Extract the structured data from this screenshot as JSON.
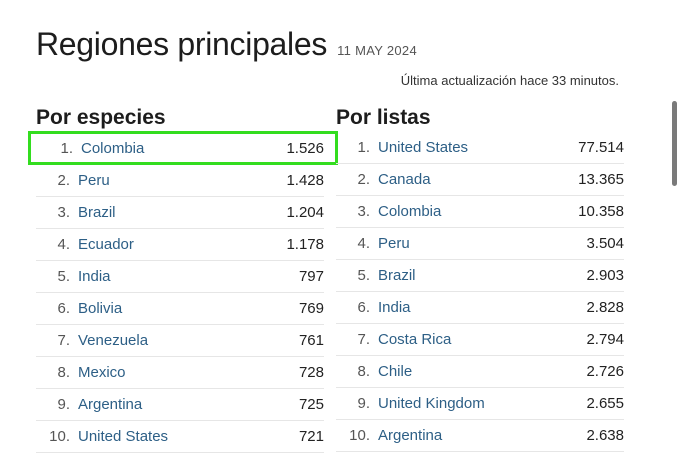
{
  "header": {
    "title": "Regiones principales",
    "date": "11 MAY 2024",
    "updated": "Última actualización hace 33 minutos."
  },
  "species": {
    "title": "Por especies",
    "rows": [
      {
        "rank": "1.",
        "name": "Colombia",
        "value": "1.526"
      },
      {
        "rank": "2.",
        "name": "Peru",
        "value": "1.428"
      },
      {
        "rank": "3.",
        "name": "Brazil",
        "value": "1.204"
      },
      {
        "rank": "4.",
        "name": "Ecuador",
        "value": "1.178"
      },
      {
        "rank": "5.",
        "name": "India",
        "value": "797"
      },
      {
        "rank": "6.",
        "name": "Bolivia",
        "value": "769"
      },
      {
        "rank": "7.",
        "name": "Venezuela",
        "value": "761"
      },
      {
        "rank": "8.",
        "name": "Mexico",
        "value": "728"
      },
      {
        "rank": "9.",
        "name": "Argentina",
        "value": "725"
      },
      {
        "rank": "10.",
        "name": "United States",
        "value": "721"
      }
    ]
  },
  "lists": {
    "title": "Por listas",
    "rows": [
      {
        "rank": "1.",
        "name": "United States",
        "value": "77.514"
      },
      {
        "rank": "2.",
        "name": "Canada",
        "value": "13.365"
      },
      {
        "rank": "3.",
        "name": "Colombia",
        "value": "10.358"
      },
      {
        "rank": "4.",
        "name": "Peru",
        "value": "3.504"
      },
      {
        "rank": "5.",
        "name": "Brazil",
        "value": "2.903"
      },
      {
        "rank": "6.",
        "name": "India",
        "value": "2.828"
      },
      {
        "rank": "7.",
        "name": "Costa Rica",
        "value": "2.794"
      },
      {
        "rank": "8.",
        "name": "Chile",
        "value": "2.726"
      },
      {
        "rank": "9.",
        "name": "United Kingdom",
        "value": "2.655"
      },
      {
        "rank": "10.",
        "name": "Argentina",
        "value": "2.638"
      }
    ]
  },
  "colors": {
    "link": "#2d5f86",
    "highlight": "#33dd1f"
  }
}
